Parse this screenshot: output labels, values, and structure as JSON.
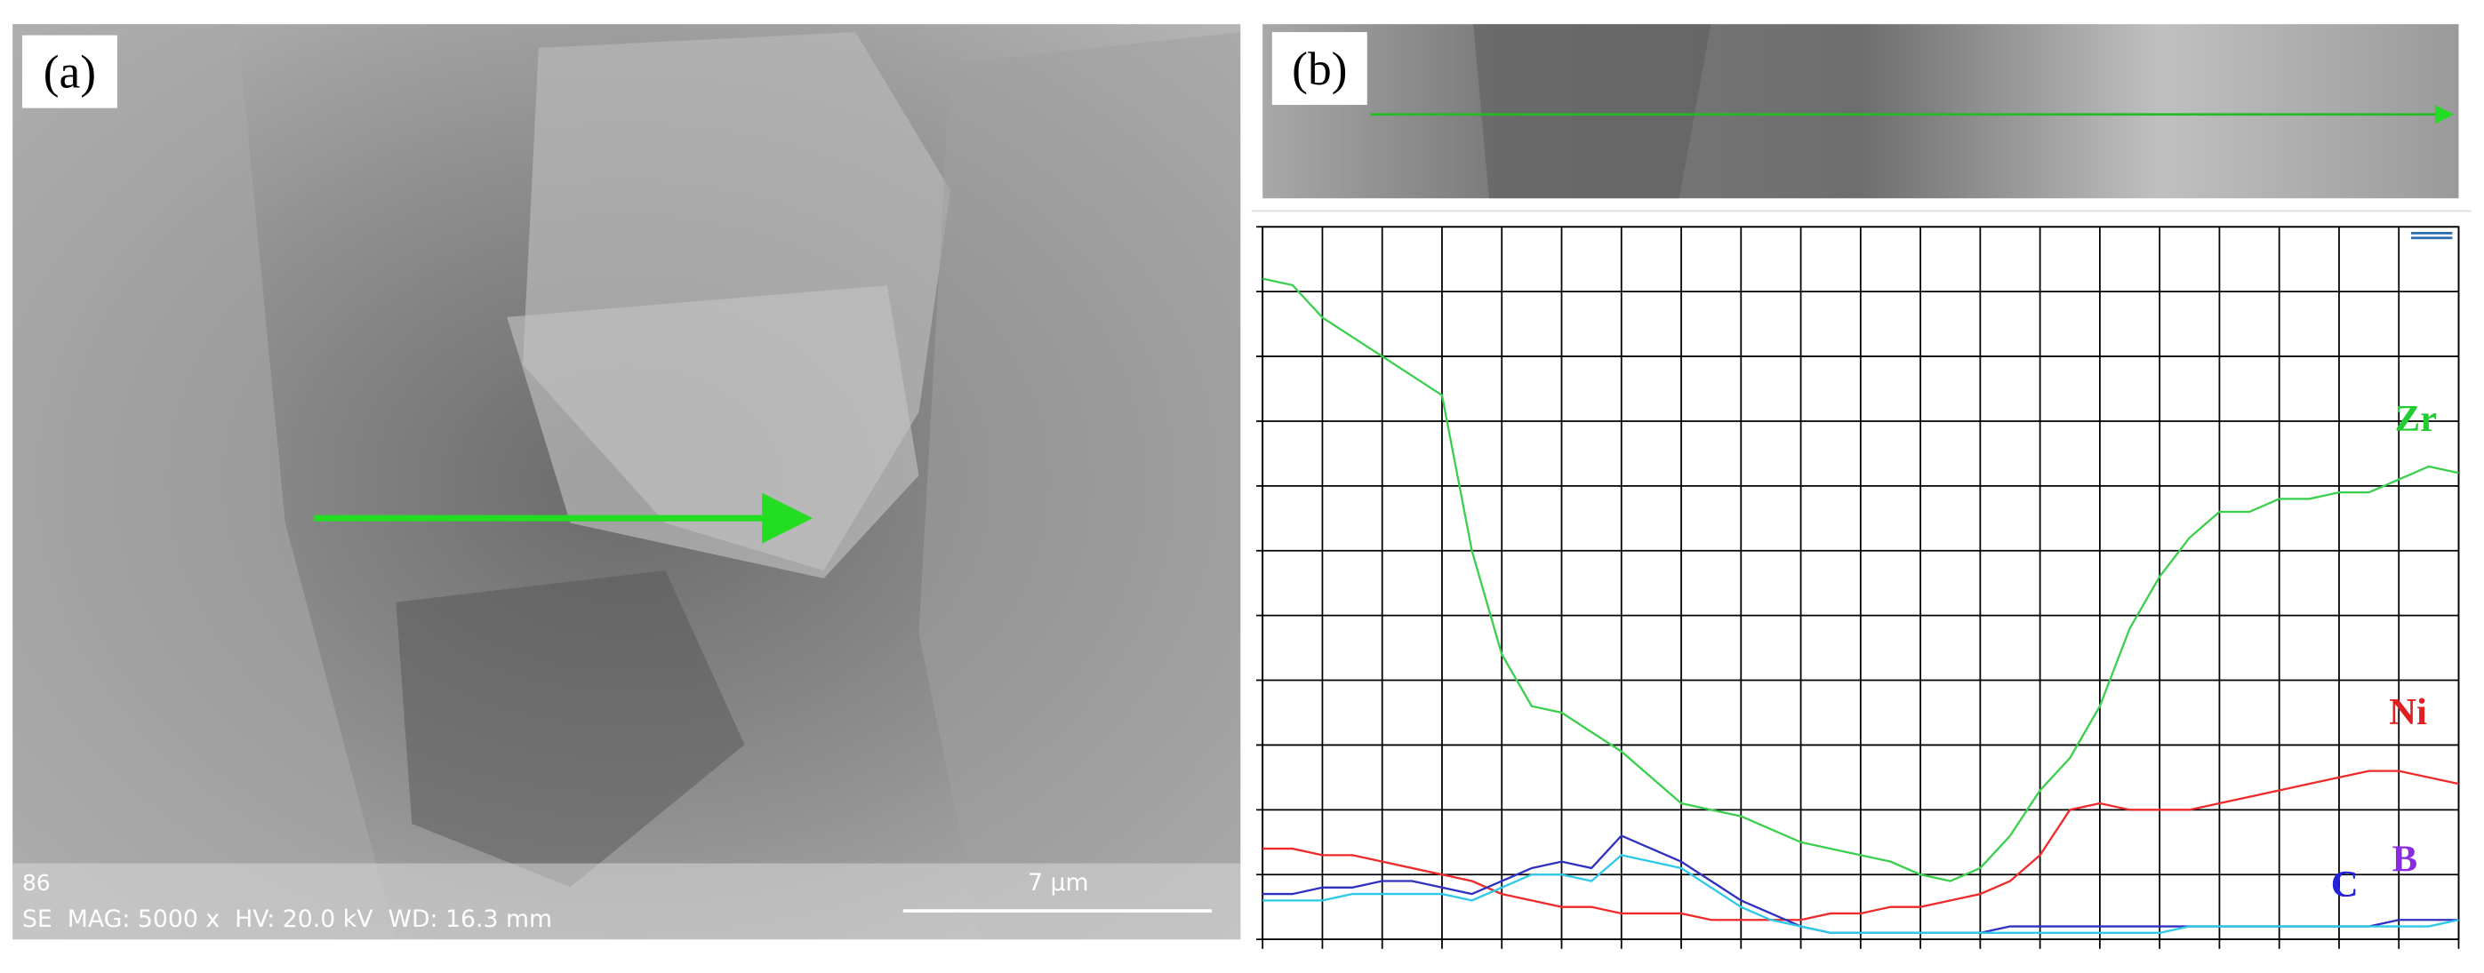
{
  "panel_a": {
    "label": "(a)",
    "info_id": "86",
    "info": "SE  MAG: 5000 x  HV: 20.0 kV  WD: 16.3 mm",
    "scale_bar": "7 µm"
  },
  "panel_b": {
    "label": "(b)"
  },
  "chart_data": {
    "type": "line",
    "x": [
      0,
      0.5,
      1,
      1.5,
      2,
      2.5,
      3,
      3.5,
      4,
      4.5,
      5,
      5.5,
      6,
      6.5,
      7,
      7.5,
      8,
      8.5,
      9,
      9.5,
      10,
      10.5,
      11,
      11.5,
      12,
      12.5,
      13,
      13.5,
      14,
      14.5,
      15,
      15.5,
      16,
      16.5,
      17,
      17.5,
      18,
      18.5,
      19,
      19.5,
      20
    ],
    "xlim": [
      0,
      20
    ],
    "ylim": [
      0,
      11
    ],
    "xticks": [
      0,
      1,
      2,
      3,
      4,
      5,
      6,
      7,
      8,
      9,
      10,
      11,
      12,
      13,
      14,
      15,
      16,
      17,
      18,
      19,
      20
    ],
    "yticks": [
      0,
      1,
      2,
      3,
      4,
      5,
      6,
      7,
      8,
      9,
      10,
      11
    ],
    "grid": true,
    "series": [
      {
        "name": "Zr",
        "color": "#3ccf4e",
        "label_color": "#22cc33",
        "values": [
          10.2,
          10.1,
          9.6,
          9.3,
          9.0,
          8.7,
          8.4,
          6.0,
          4.4,
          3.6,
          3.5,
          3.2,
          2.9,
          2.5,
          2.1,
          2.0,
          1.9,
          1.7,
          1.5,
          1.4,
          1.3,
          1.2,
          1.0,
          0.9,
          1.1,
          1.6,
          2.3,
          2.8,
          3.6,
          4.8,
          5.6,
          6.2,
          6.6,
          6.6,
          6.8,
          6.8,
          6.9,
          6.9,
          7.1,
          7.3,
          7.2
        ]
      },
      {
        "name": "Ni",
        "color": "#ee2a2a",
        "label_color": "#e02020",
        "values": [
          1.4,
          1.4,
          1.3,
          1.3,
          1.2,
          1.1,
          1.0,
          0.9,
          0.7,
          0.6,
          0.5,
          0.5,
          0.4,
          0.4,
          0.4,
          0.3,
          0.3,
          0.3,
          0.3,
          0.4,
          0.4,
          0.5,
          0.5,
          0.6,
          0.7,
          0.9,
          1.3,
          2.0,
          2.1,
          2.0,
          2.0,
          2.0,
          2.1,
          2.2,
          2.3,
          2.4,
          2.5,
          2.6,
          2.6,
          2.5,
          2.4
        ]
      },
      {
        "name": "B",
        "color": "#3030c0",
        "label_color": "#8a2be2",
        "values": [
          0.7,
          0.7,
          0.8,
          0.8,
          0.9,
          0.9,
          0.8,
          0.7,
          0.9,
          1.1,
          1.2,
          1.1,
          1.6,
          1.4,
          1.2,
          0.9,
          0.6,
          0.4,
          0.2,
          0.1,
          0.1,
          0.1,
          0.1,
          0.1,
          0.1,
          0.2,
          0.2,
          0.2,
          0.2,
          0.2,
          0.2,
          0.2,
          0.2,
          0.2,
          0.2,
          0.2,
          0.2,
          0.2,
          0.3,
          0.3,
          0.3
        ]
      },
      {
        "name": "C",
        "color": "#2ec8e8",
        "label_color": "#2222dd",
        "values": [
          0.6,
          0.6,
          0.6,
          0.7,
          0.7,
          0.7,
          0.7,
          0.6,
          0.8,
          1.0,
          1.0,
          0.9,
          1.3,
          1.2,
          1.1,
          0.8,
          0.5,
          0.3,
          0.2,
          0.1,
          0.1,
          0.1,
          0.1,
          0.1,
          0.1,
          0.1,
          0.1,
          0.1,
          0.1,
          0.1,
          0.1,
          0.2,
          0.2,
          0.2,
          0.2,
          0.2,
          0.2,
          0.2,
          0.2,
          0.2,
          0.3
        ]
      }
    ]
  }
}
